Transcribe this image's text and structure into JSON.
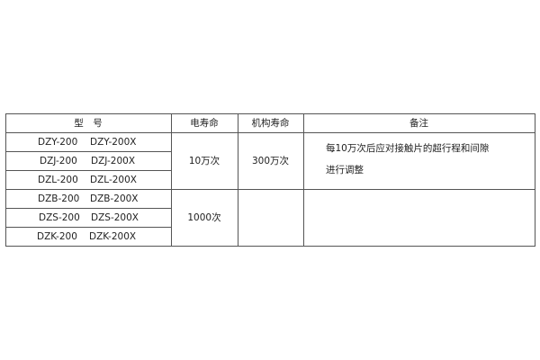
{
  "table": {
    "headers": [
      "型　号",
      "电寿命",
      "机构寿命",
      "备注"
    ],
    "models": [
      [
        "DZY-200",
        "DZY-200X"
      ],
      [
        "DZJ-200",
        "DZJ-200X"
      ],
      [
        "DZL-200",
        "DZL-200X"
      ],
      [
        "DZB-200",
        "DZB-200X"
      ],
      [
        "DZS-200",
        "DZS-200X"
      ],
      [
        "DZK-200",
        "DZK-200X"
      ]
    ],
    "groups": [
      {
        "electrical_life": "10万次",
        "mechanical_life": "300万次",
        "remarks": [
          "每10万次后应对接触片的超行程和间隙",
          "进行调整"
        ]
      },
      {
        "electrical_life": "1000次",
        "mechanical_life": "",
        "remarks": []
      }
    ]
  }
}
